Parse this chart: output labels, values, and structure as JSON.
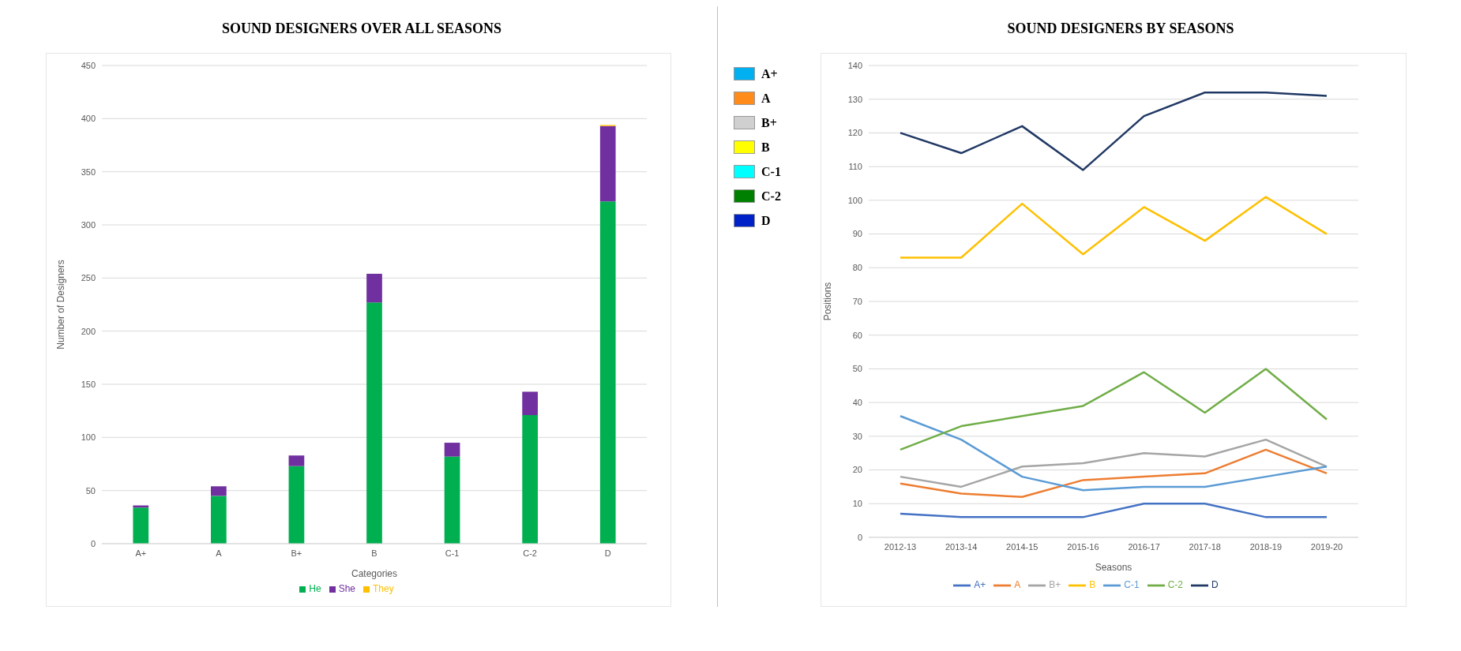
{
  "chart_data": [
    {
      "type": "bar",
      "title": "SOUND DESIGNERS OVER ALL SEASONS",
      "xlabel": "Categories",
      "ylabel": "Number of Designers",
      "categories": [
        "A+",
        "A",
        "B+",
        "B",
        "C-1",
        "C-2",
        "D"
      ],
      "stacked": true,
      "series": [
        {
          "name": "He",
          "color": "#00b050",
          "values": [
            34,
            45,
            73,
            227,
            82,
            121,
            322
          ]
        },
        {
          "name": "She",
          "color": "#7030a0",
          "values": [
            2,
            9,
            10,
            27,
            13,
            22,
            71
          ]
        },
        {
          "name": "They",
          "color": "#ffc000",
          "values": [
            0,
            0,
            0,
            0,
            0,
            0,
            1
          ]
        }
      ],
      "ylim": [
        0,
        450
      ],
      "yticks": [
        0,
        50,
        100,
        150,
        200,
        250,
        300,
        350,
        400,
        450
      ],
      "grid": "y",
      "legend": "bottom"
    },
    {
      "type": "other",
      "categories": [
        "A+",
        "A",
        "B+",
        "B",
        "C-1",
        "C-2",
        "D"
      ],
      "colors": [
        "#00b0f0",
        "#ff8c1a",
        "#d0d0d0",
        "#ffff00",
        "#00ffff",
        "#008000",
        "#0020c8"
      ]
    },
    {
      "type": "line",
      "title": "SOUND DESIGNERS BY SEASONS",
      "xlabel": "Seasons",
      "ylabel": "Positions",
      "categories": [
        "2012-13",
        "2013-14",
        "2014-15",
        "2015-16",
        "2016-17",
        "2017-18",
        "2018-19",
        "2019-20"
      ],
      "series": [
        {
          "name": "A+",
          "color": "#4472c4",
          "values": [
            7,
            6,
            6,
            6,
            10,
            10,
            6,
            6
          ]
        },
        {
          "name": "A",
          "color": "#ed7d31",
          "values": [
            16,
            13,
            12,
            17,
            18,
            19,
            26,
            19
          ]
        },
        {
          "name": "B+",
          "color": "#a5a5a5",
          "values": [
            18,
            15,
            21,
            22,
            25,
            24,
            29,
            21
          ]
        },
        {
          "name": "B",
          "color": "#ffc000",
          "values": [
            83,
            83,
            99,
            84,
            98,
            88,
            101,
            90
          ]
        },
        {
          "name": "C-1",
          "color": "#5b9bd5",
          "values": [
            36,
            29,
            18,
            14,
            15,
            15,
            18,
            21
          ]
        },
        {
          "name": "C-2",
          "color": "#70ad47",
          "values": [
            26,
            33,
            36,
            39,
            49,
            37,
            50,
            35
          ]
        },
        {
          "name": "D",
          "color": "#203864",
          "values": [
            120,
            114,
            122,
            109,
            125,
            132,
            132,
            131
          ]
        }
      ],
      "ylim": [
        0,
        140
      ],
      "yticks": [
        0,
        10,
        20,
        30,
        40,
        50,
        60,
        70,
        80,
        90,
        100,
        110,
        120,
        130,
        140
      ],
      "grid": "y",
      "legend": "bottom",
      "marker": "none",
      "line_style": "solid"
    }
  ]
}
